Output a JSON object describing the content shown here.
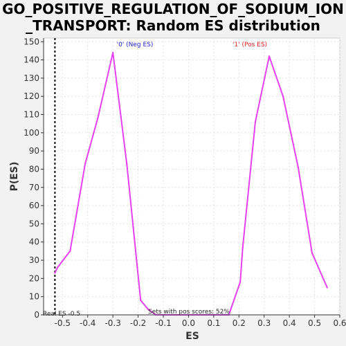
{
  "chart_data": {
    "type": "line",
    "title_line1": "GO_POSITIVE_REGULATION_OF_SODIUM_ION",
    "title_line2": "_TRANSPORT: Random ES distribution",
    "xlabel": "ES",
    "ylabel": "P(ES)",
    "xlim": [
      -0.575,
      0.6
    ],
    "ylim": [
      0,
      152
    ],
    "xticks": [
      "-0.5",
      "-0.4",
      "-0.3",
      "-0.2",
      "-0.1",
      "0.0",
      "0.1",
      "0.2",
      "0.3",
      "0.4",
      "0.5",
      "0.6"
    ],
    "yticks": [
      "0",
      "10",
      "20",
      "30",
      "40",
      "50",
      "60",
      "70",
      "80",
      "90",
      "100",
      "110",
      "120",
      "130",
      "140",
      "150"
    ],
    "grid": true,
    "line_color": "#e640f0",
    "series": [
      {
        "x": [
          -0.53,
          -0.52,
          -0.47,
          -0.41,
          -0.36,
          -0.3,
          -0.245,
          -0.19,
          -0.16,
          -0.13,
          -0.1,
          -0.05,
          0.0,
          0.05,
          0.1,
          0.16,
          0.205,
          0.215,
          0.265,
          0.32,
          0.375,
          0.435,
          0.49,
          0.55
        ],
        "y": [
          23,
          26,
          35,
          83,
          108,
          144,
          83,
          8,
          3,
          0,
          0,
          0,
          0,
          0,
          0,
          0,
          18,
          37,
          106,
          142,
          120,
          81,
          34,
          15
        ]
      }
    ],
    "annotations": {
      "neg_label": "'0' (Neg ES)",
      "neg_color": "#2222cc",
      "pos_label": "'1' (Pos ES)",
      "pos_color": "#dd2222",
      "real_es_label": "Real ES -0.5",
      "real_es_value": -0.53,
      "pos_scores_label": "Sets with pos scores: 52%"
    }
  }
}
